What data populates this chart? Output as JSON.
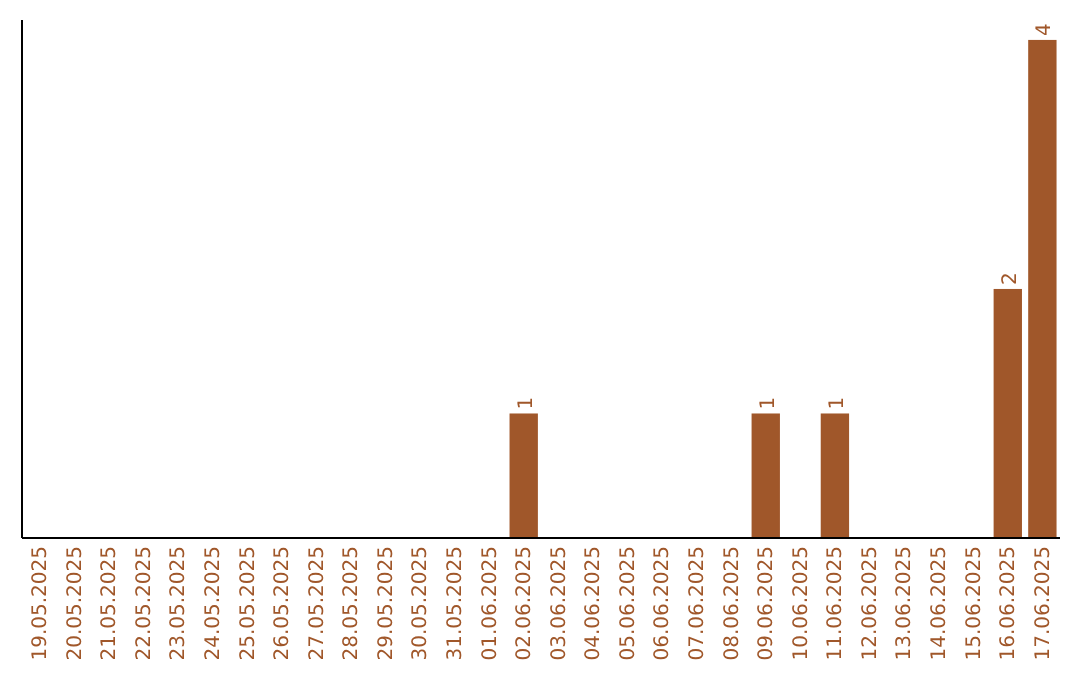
{
  "chart_data": {
    "type": "bar",
    "categories": [
      "19.05.2025",
      "20.05.2025",
      "21.05.2025",
      "22.05.2025",
      "23.05.2025",
      "24.05.2025",
      "25.05.2025",
      "26.05.2025",
      "27.05.2025",
      "28.05.2025",
      "29.05.2025",
      "30.05.2025",
      "31.05.2025",
      "01.06.2025",
      "02.06.2025",
      "03.06.2025",
      "04.06.2025",
      "05.06.2025",
      "06.06.2025",
      "07.06.2025",
      "08.06.2025",
      "09.06.2025",
      "10.06.2025",
      "11.06.2025",
      "12.06.2025",
      "13.06.2025",
      "14.06.2025",
      "15.06.2025",
      "16.06.2025",
      "17.06.2025"
    ],
    "values": [
      null,
      null,
      null,
      null,
      null,
      null,
      null,
      null,
      null,
      null,
      null,
      null,
      null,
      null,
      1,
      null,
      null,
      null,
      null,
      null,
      null,
      1,
      null,
      1,
      null,
      null,
      null,
      null,
      2,
      4
    ],
    "data_labels": true,
    "color": "#a0572a",
    "tick_labels": "x"
  }
}
